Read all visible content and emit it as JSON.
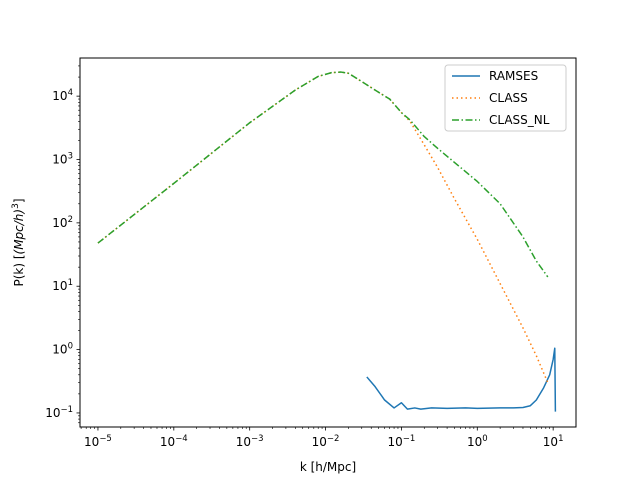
{
  "chart_data": {
    "type": "line",
    "xlabel": "k [h/Mpc]",
    "ylabel_prefix": "P(k) [",
    "ylabel_math": "(Mpc/h)",
    "ylabel_sup": "3",
    "ylabel_suffix": "]",
    "xscale": "log",
    "yscale": "log",
    "xlim": [
      5.8e-06,
      20
    ],
    "ylim": [
      0.06,
      40000
    ],
    "x_ticks": [
      {
        "value": 1e-05,
        "base": "10",
        "exp": "−5"
      },
      {
        "value": 0.0001,
        "base": "10",
        "exp": "−4"
      },
      {
        "value": 0.001,
        "base": "10",
        "exp": "−3"
      },
      {
        "value": 0.01,
        "base": "10",
        "exp": "−2"
      },
      {
        "value": 0.1,
        "base": "10",
        "exp": "−1"
      },
      {
        "value": 1,
        "base": "10",
        "exp": "0"
      },
      {
        "value": 10,
        "base": "10",
        "exp": "1"
      }
    ],
    "y_ticks": [
      {
        "value": 0.1,
        "base": "10",
        "exp": "−1"
      },
      {
        "value": 1,
        "base": "10",
        "exp": "0"
      },
      {
        "value": 10,
        "base": "10",
        "exp": "1"
      },
      {
        "value": 100,
        "base": "10",
        "exp": "2"
      },
      {
        "value": 1000,
        "base": "10",
        "exp": "3"
      },
      {
        "value": 10000,
        "base": "10",
        "exp": "4"
      }
    ],
    "grid": false,
    "legend_position": "top-right",
    "series": [
      {
        "name": "RAMSES",
        "color": "#1f77b4",
        "style": "solid",
        "points": [
          [
            0.035,
            0.37
          ],
          [
            0.045,
            0.26
          ],
          [
            0.06,
            0.16
          ],
          [
            0.08,
            0.12
          ],
          [
            0.1,
            0.145
          ],
          [
            0.12,
            0.115
          ],
          [
            0.15,
            0.12
          ],
          [
            0.18,
            0.115
          ],
          [
            0.25,
            0.12
          ],
          [
            0.4,
            0.118
          ],
          [
            0.7,
            0.12
          ],
          [
            1.0,
            0.118
          ],
          [
            2.0,
            0.12
          ],
          [
            3.0,
            0.12
          ],
          [
            4.0,
            0.122
          ],
          [
            5.0,
            0.13
          ],
          [
            6.0,
            0.16
          ],
          [
            7.5,
            0.25
          ],
          [
            9.0,
            0.4
          ],
          [
            10.0,
            0.7
          ],
          [
            10.5,
            1.05
          ],
          [
            10.7,
            0.105
          ]
        ]
      },
      {
        "name": "CLASS",
        "color": "#ff7f0e",
        "style": "dotted",
        "points": [
          [
            1e-05,
            48
          ],
          [
            0.0001,
            420
          ],
          [
            0.001,
            3800
          ],
          [
            0.004,
            12500
          ],
          [
            0.008,
            20500
          ],
          [
            0.012,
            23500
          ],
          [
            0.016,
            24000
          ],
          [
            0.02,
            23000
          ],
          [
            0.03,
            17000
          ],
          [
            0.05,
            11500
          ],
          [
            0.07,
            9000
          ],
          [
            0.1,
            5500
          ],
          [
            0.13,
            4000
          ],
          [
            0.2,
            1700
          ],
          [
            0.3,
            750
          ],
          [
            0.5,
            240
          ],
          [
            1.0,
            55
          ],
          [
            2.0,
            11
          ],
          [
            4.0,
            2.2
          ],
          [
            6.0,
            0.8
          ],
          [
            8.5,
            0.3
          ]
        ]
      },
      {
        "name": "CLASS_NL",
        "color": "#2ca02c",
        "style": "dashdot",
        "points": [
          [
            1e-05,
            48
          ],
          [
            0.0001,
            420
          ],
          [
            0.001,
            3800
          ],
          [
            0.004,
            12500
          ],
          [
            0.008,
            20500
          ],
          [
            0.012,
            23500
          ],
          [
            0.016,
            24000
          ],
          [
            0.02,
            23000
          ],
          [
            0.03,
            17000
          ],
          [
            0.05,
            11500
          ],
          [
            0.07,
            9000
          ],
          [
            0.1,
            5500
          ],
          [
            0.13,
            4200
          ],
          [
            0.2,
            2300
          ],
          [
            0.3,
            1500
          ],
          [
            0.5,
            900
          ],
          [
            1.0,
            450
          ],
          [
            2.0,
            200
          ],
          [
            4.0,
            60
          ],
          [
            6.0,
            25
          ],
          [
            8.5,
            14
          ]
        ]
      }
    ]
  }
}
